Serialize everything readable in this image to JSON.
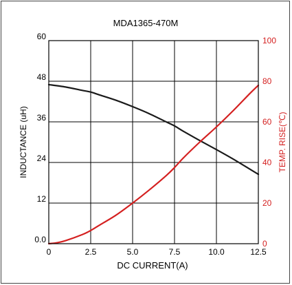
{
  "chart_data": {
    "type": "line",
    "title": "MDA1365-470M",
    "xlabel": "DC CURRENT(A)",
    "ylabel": "INDUCTANCE (uH)",
    "y2label": "TEMP. RISE(℃)",
    "xlim": [
      0,
      12.5
    ],
    "ylim": [
      0,
      60
    ],
    "y2lim": [
      0,
      100
    ],
    "x_ticks": [
      "0",
      "2.5",
      "5.0",
      "7.5",
      "10.0",
      "12.5"
    ],
    "y_ticks": [
      "0.0",
      "12",
      "24",
      "36",
      "48",
      "60"
    ],
    "y2_ticks": [
      "0",
      "20",
      "40",
      "60",
      "80",
      "100"
    ],
    "grid": true,
    "series": [
      {
        "axis": "left",
        "color": "#1a1a1a",
        "x": [
          0,
          1,
          2,
          2.5,
          3,
          4,
          5,
          6,
          7,
          7.5,
          8,
          9,
          10,
          11,
          12,
          12.5
        ],
        "y": [
          47.0,
          46.3,
          45.3,
          44.8,
          44.0,
          42.4,
          40.5,
          38.4,
          36.0,
          34.8,
          33.3,
          30.5,
          27.8,
          25.0,
          22.0,
          20.5
        ]
      },
      {
        "axis": "right",
        "color": "#d42020",
        "x": [
          0,
          0.5,
          1,
          2,
          2.5,
          3,
          4,
          5,
          6,
          7,
          7.5,
          8,
          9,
          10,
          11,
          12,
          12.5
        ],
        "y": [
          0,
          0.5,
          1.5,
          4.5,
          6.5,
          9.0,
          14.0,
          20.0,
          26.5,
          33.5,
          37.5,
          42.0,
          50.0,
          57.5,
          65.5,
          74.0,
          78.0
        ]
      }
    ]
  }
}
